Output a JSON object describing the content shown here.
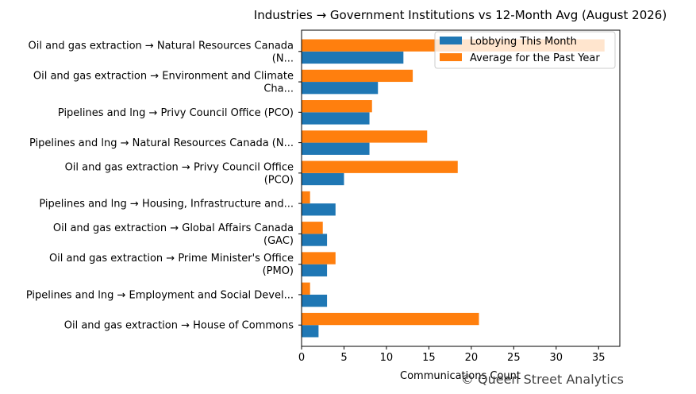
{
  "chart_data": {
    "type": "bar",
    "orientation": "horizontal",
    "title": "Industries → Government Institutions vs 12-Month Avg (August 2026)",
    "xlabel": "Communications Count",
    "ylabel": "",
    "xlim": [
      0,
      37.5
    ],
    "xticks": [
      0,
      5,
      10,
      15,
      20,
      25,
      30,
      35
    ],
    "grid": false,
    "legend_position": "top-right",
    "categories": [
      [
        "Oil and gas extraction → Natural Resources Canada",
        "(N..."
      ],
      [
        "Oil and gas extraction → Environment and Climate",
        "Cha..."
      ],
      [
        "Pipelines and lng → Privy Council Office (PCO)"
      ],
      [
        "Pipelines and lng → Natural Resources Canada (N..."
      ],
      [
        "Oil and gas extraction → Privy Council Office",
        "(PCO)"
      ],
      [
        "Pipelines and lng → Housing, Infrastructure and..."
      ],
      [
        "Oil and gas extraction → Global Affairs Canada",
        "(GAC)"
      ],
      [
        "Oil and gas extraction → Prime Minister's Office",
        "(PMO)"
      ],
      [
        "Pipelines and lng → Employment and Social Devel..."
      ],
      [
        "Oil and gas extraction → House of Commons"
      ]
    ],
    "series": [
      {
        "name": "Lobbying This Month",
        "color": "#1f77b4",
        "values": [
          12,
          9,
          8,
          8,
          5,
          4,
          3,
          3,
          3,
          2
        ]
      },
      {
        "name": "Average for the Past Year",
        "color": "#ff7f0e",
        "values": [
          35.7,
          13.1,
          8.3,
          14.8,
          18.4,
          1.0,
          2.5,
          4.0,
          1.0,
          20.9
        ]
      }
    ]
  },
  "watermark": "© Queen Street Analytics"
}
